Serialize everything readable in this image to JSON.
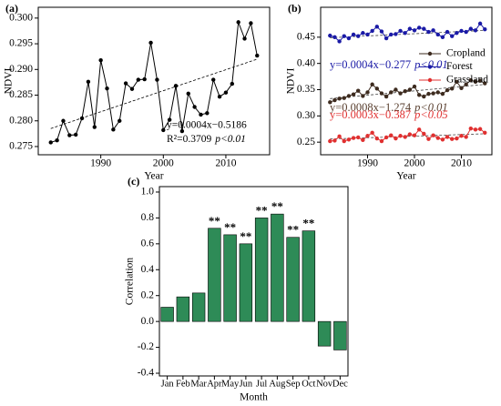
{
  "chart_data": [
    {
      "type": "line",
      "title": "(a)",
      "ylabel": "NDVI",
      "xlabel": "Year",
      "x": [
        1982,
        1983,
        1984,
        1985,
        1986,
        1987,
        1988,
        1989,
        1990,
        1991,
        1992,
        1993,
        1994,
        1995,
        1996,
        1997,
        1998,
        1999,
        2000,
        2001,
        2002,
        2003,
        2004,
        2005,
        2006,
        2007,
        2008,
        2009,
        2010,
        2011,
        2012,
        2013,
        2014,
        2015
      ],
      "series": [
        {
          "color": "#000000",
          "values": [
            0.2758,
            0.2762,
            0.28,
            0.2772,
            0.2773,
            0.2805,
            0.2876,
            0.2788,
            0.2918,
            0.2863,
            0.2783,
            0.28,
            0.2873,
            0.2862,
            0.288,
            0.2881,
            0.2952,
            0.288,
            0.2782,
            0.2802,
            0.2868,
            0.278,
            0.2853,
            0.2827,
            0.2812,
            0.2815,
            0.288,
            0.2847,
            0.2855,
            0.2872,
            0.2992,
            0.296,
            0.299,
            0.2927
          ],
          "trend": {
            "x": [
              1982,
              2015
            ],
            "values": [
              0.2785,
              0.292
            ]
          }
        }
      ],
      "annotations": [
        "y=0.0004x−0.5186",
        "R²=0.3709",
        "p<0.01"
      ],
      "xlim": [
        1980,
        2017
      ],
      "xticks": [
        1990,
        2000,
        2010
      ],
      "ylim": [
        0.2734,
        0.3021
      ],
      "yticks": [
        0.275,
        {
          "value": 0.28,
          "label": "0.280"
        },
        0.285,
        {
          "value": 0.29,
          "label": "0.290"
        },
        0.295,
        {
          "value": 0.3,
          "label": "0.300"
        }
      ]
    },
    {
      "type": "line",
      "title": "(b)",
      "ylabel": "NDVI",
      "xlabel": "Year",
      "legend": "right",
      "x": [
        1982,
        1983,
        1984,
        1985,
        1986,
        1987,
        1988,
        1989,
        1990,
        1991,
        1992,
        1993,
        1994,
        1995,
        1996,
        1997,
        1998,
        1999,
        2000,
        2001,
        2002,
        2003,
        2004,
        2005,
        2006,
        2007,
        2008,
        2009,
        2010,
        2011,
        2012,
        2013,
        2014,
        2015
      ],
      "series": [
        {
          "name": "Cropland",
          "color": "#3d2b1f",
          "text_color": "#5a4030",
          "equation": "y=0.0008x−1.274",
          "p": "p<0.01",
          "values": [
            0.326,
            0.33,
            0.333,
            0.334,
            0.338,
            0.341,
            0.348,
            0.338,
            0.345,
            0.36,
            0.352,
            0.343,
            0.337,
            0.345,
            0.35,
            0.343,
            0.347,
            0.35,
            0.356,
            0.34,
            0.337,
            0.342,
            0.343,
            0.345,
            0.342,
            0.349,
            0.352,
            0.365,
            0.353,
            0.36,
            0.368,
            0.365,
            0.367,
            0.362
          ],
          "trend": {
            "x": [
              1982,
              2015
            ],
            "values": [
              0.333,
              0.36
            ]
          }
        },
        {
          "name": "Forest",
          "color": "#1a1aa6",
          "text_color": "#1a1aa6",
          "equation": "y=0.0004x−0.277",
          "p": "p<0.01",
          "values": [
            0.453,
            0.45,
            0.442,
            0.452,
            0.448,
            0.455,
            0.452,
            0.458,
            0.455,
            0.462,
            0.47,
            0.461,
            0.448,
            0.455,
            0.456,
            0.462,
            0.458,
            0.466,
            0.463,
            0.468,
            0.466,
            0.46,
            0.463,
            0.455,
            0.45,
            0.46,
            0.452,
            0.458,
            0.462,
            0.46,
            0.466,
            0.463,
            0.476,
            0.465
          ],
          "trend": {
            "x": [
              1982,
              2015
            ],
            "values": [
              0.449,
              0.463
            ]
          }
        },
        {
          "name": "Grassland",
          "color": "#e03030",
          "text_color": "#e03030",
          "equation": "y=0.0003x−0.387",
          "p": "p<0.05",
          "values": [
            0.252,
            0.253,
            0.261,
            0.252,
            0.255,
            0.258,
            0.259,
            0.254,
            0.262,
            0.268,
            0.257,
            0.252,
            0.259,
            0.263,
            0.257,
            0.262,
            0.26,
            0.265,
            0.263,
            0.274,
            0.266,
            0.256,
            0.263,
            0.258,
            0.255,
            0.26,
            0.256,
            0.257,
            0.262,
            0.26,
            0.276,
            0.274,
            0.275,
            0.268
          ],
          "trend": {
            "x": [
              1982,
              2015
            ],
            "values": [
              0.256,
              0.266
            ]
          }
        }
      ],
      "xlim": [
        1980,
        2016.5
      ],
      "xticks": [
        1990,
        2000,
        2010
      ],
      "ylim": [
        0.226,
        0.507
      ],
      "yticks": [
        0.25,
        {
          "value": 0.3,
          "label": "0.30"
        },
        0.35,
        {
          "value": 0.4,
          "label": "0.40"
        },
        0.45
      ]
    },
    {
      "type": "bar",
      "title": "(c)",
      "ylabel": "Correlation",
      "xlabel": "Month",
      "color": "#2e8b57",
      "categories": [
        "Jan",
        "Feb",
        "Mar",
        "Apr",
        "May",
        "Jun",
        "Jul",
        "Aug",
        "Sep",
        "Oct",
        "Nov",
        "Dec"
      ],
      "values": [
        0.11,
        0.19,
        0.22,
        0.72,
        0.67,
        0.6,
        0.8,
        0.83,
        0.65,
        0.7,
        -0.19,
        -0.22
      ],
      "significance": [
        null,
        null,
        null,
        "**",
        "**",
        "**",
        "**",
        "**",
        "**",
        "**",
        null,
        null
      ],
      "ylim": [
        -0.421,
        1.042
      ],
      "yticks": [
        -0.4,
        -0.2,
        {
          "value": 0,
          "label": "0.0"
        },
        0.2,
        0.4,
        0.6,
        0.8,
        {
          "value": 1,
          "label": "1.0"
        }
      ]
    }
  ]
}
